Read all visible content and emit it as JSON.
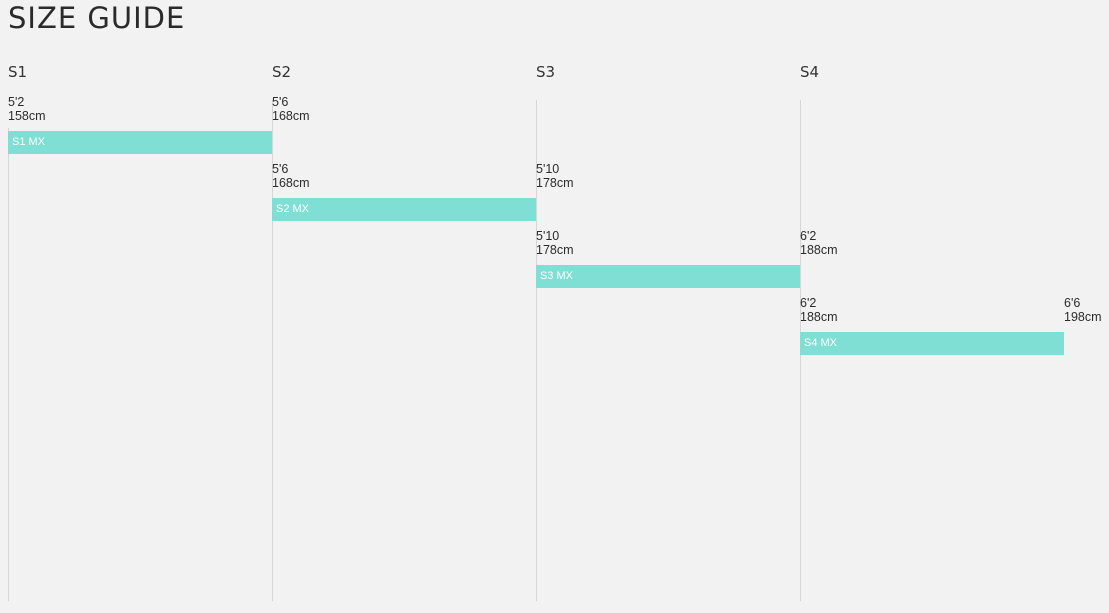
{
  "page": {
    "title": "SIZE GUIDE"
  },
  "chart_data": {
    "type": "bar",
    "title": "SIZE GUIDE",
    "columns": [
      "S1",
      "S2",
      "S3",
      "S4"
    ],
    "bar_color": "#7fdfd4",
    "series": [
      {
        "label": "S1 MX",
        "min": {
          "ft": "5'2",
          "cm": "158cm",
          "value_cm": 158
        },
        "max": {
          "ft": "5'6",
          "cm": "168cm",
          "value_cm": 168
        }
      },
      {
        "label": "S2 MX",
        "min": {
          "ft": "5'6",
          "cm": "168cm",
          "value_cm": 168
        },
        "max": {
          "ft": "5'10",
          "cm": "178cm",
          "value_cm": 178
        }
      },
      {
        "label": "S3 MX",
        "min": {
          "ft": "5'10",
          "cm": "178cm",
          "value_cm": 178
        },
        "max": {
          "ft": "6'2",
          "cm": "188cm",
          "value_cm": 188
        }
      },
      {
        "label": "S4 MX",
        "min": {
          "ft": "6'2",
          "cm": "188cm",
          "value_cm": 188
        },
        "max": {
          "ft": "6'6",
          "cm": "198cm",
          "value_cm": 198
        }
      }
    ]
  }
}
